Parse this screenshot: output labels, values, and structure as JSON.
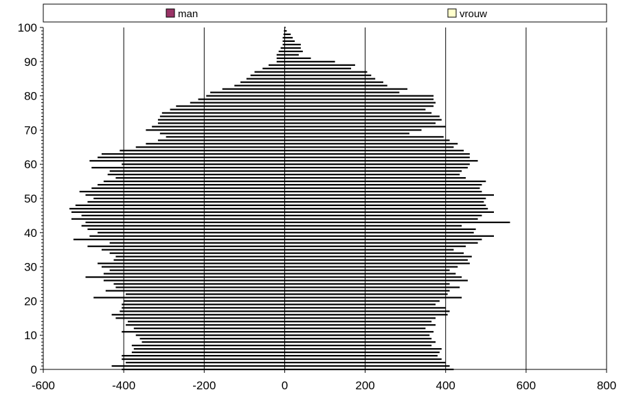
{
  "chart_data": {
    "type": "bar",
    "orientation": "horizontal",
    "style": "population-pyramid",
    "title": "",
    "xlabel": "",
    "ylabel": "",
    "xlim": [
      -600,
      800
    ],
    "ylim": [
      0,
      100
    ],
    "x_ticks": [
      -600,
      -400,
      -200,
      0,
      200,
      400,
      600,
      800
    ],
    "y_ticks": [
      0,
      10,
      20,
      30,
      40,
      50,
      60,
      70,
      80,
      90,
      100
    ],
    "grid": "vertical gridlines",
    "legend_position": "top",
    "categories": [
      0,
      1,
      2,
      3,
      4,
      5,
      6,
      7,
      8,
      9,
      10,
      11,
      12,
      13,
      14,
      15,
      16,
      17,
      18,
      19,
      20,
      21,
      22,
      23,
      24,
      25,
      26,
      27,
      28,
      29,
      30,
      31,
      32,
      33,
      34,
      35,
      36,
      37,
      38,
      39,
      40,
      41,
      42,
      43,
      44,
      45,
      46,
      47,
      48,
      49,
      50,
      51,
      52,
      53,
      54,
      55,
      56,
      57,
      58,
      59,
      60,
      61,
      62,
      63,
      64,
      65,
      66,
      67,
      68,
      69,
      70,
      71,
      72,
      73,
      74,
      75,
      76,
      77,
      78,
      79,
      80,
      81,
      82,
      83,
      84,
      85,
      86,
      87,
      88,
      89,
      90,
      91,
      92,
      93,
      94,
      95,
      96,
      97,
      98,
      99,
      100
    ],
    "series": [
      {
        "name": "man",
        "color": "#993366",
        "values": [
          -405,
          -430,
          -395,
          -405,
          -405,
          -380,
          -375,
          -380,
          -355,
          -360,
          -370,
          -405,
          -375,
          -395,
          -390,
          -420,
          -430,
          -410,
          -405,
          -405,
          -400,
          -475,
          -395,
          -445,
          -420,
          -425,
          -450,
          -495,
          -450,
          -435,
          -455,
          -465,
          -425,
          -420,
          -435,
          -455,
          -490,
          -435,
          -525,
          -485,
          -465,
          -490,
          -505,
          -495,
          -530,
          -505,
          -530,
          -535,
          -520,
          -490,
          -475,
          -495,
          -510,
          -480,
          -465,
          -450,
          -420,
          -440,
          -435,
          -480,
          -405,
          -485,
          -465,
          -455,
          -410,
          -370,
          -345,
          -315,
          -295,
          -310,
          -345,
          -330,
          -315,
          -315,
          -310,
          -305,
          -285,
          -270,
          -235,
          -215,
          -195,
          -185,
          -155,
          -125,
          -110,
          -95,
          -85,
          -75,
          -55,
          -40,
          -20,
          -20,
          -20,
          -15,
          -10,
          -5,
          -5,
          -5,
          -3,
          -2,
          -1
        ]
      },
      {
        "name": "vrouw",
        "color": "#ffffcc",
        "values": [
          420,
          410,
          400,
          390,
          380,
          385,
          390,
          365,
          375,
          365,
          360,
          370,
          350,
          375,
          365,
          375,
          405,
          410,
          400,
          375,
          385,
          440,
          405,
          410,
          435,
          410,
          455,
          440,
          425,
          410,
          430,
          460,
          455,
          465,
          445,
          420,
          450,
          480,
          490,
          520,
          470,
          475,
          440,
          560,
          480,
          490,
          520,
          505,
          500,
          495,
          500,
          520,
          490,
          485,
          490,
          500,
          450,
          435,
          440,
          455,
          460,
          480,
          460,
          460,
          445,
          420,
          430,
          410,
          395,
          310,
          340,
          400,
          375,
          390,
          385,
          365,
          350,
          370,
          375,
          370,
          370,
          285,
          305,
          255,
          245,
          225,
          215,
          205,
          165,
          175,
          125,
          65,
          35,
          45,
          40,
          40,
          25,
          20,
          15,
          5,
          2
        ]
      }
    ]
  }
}
